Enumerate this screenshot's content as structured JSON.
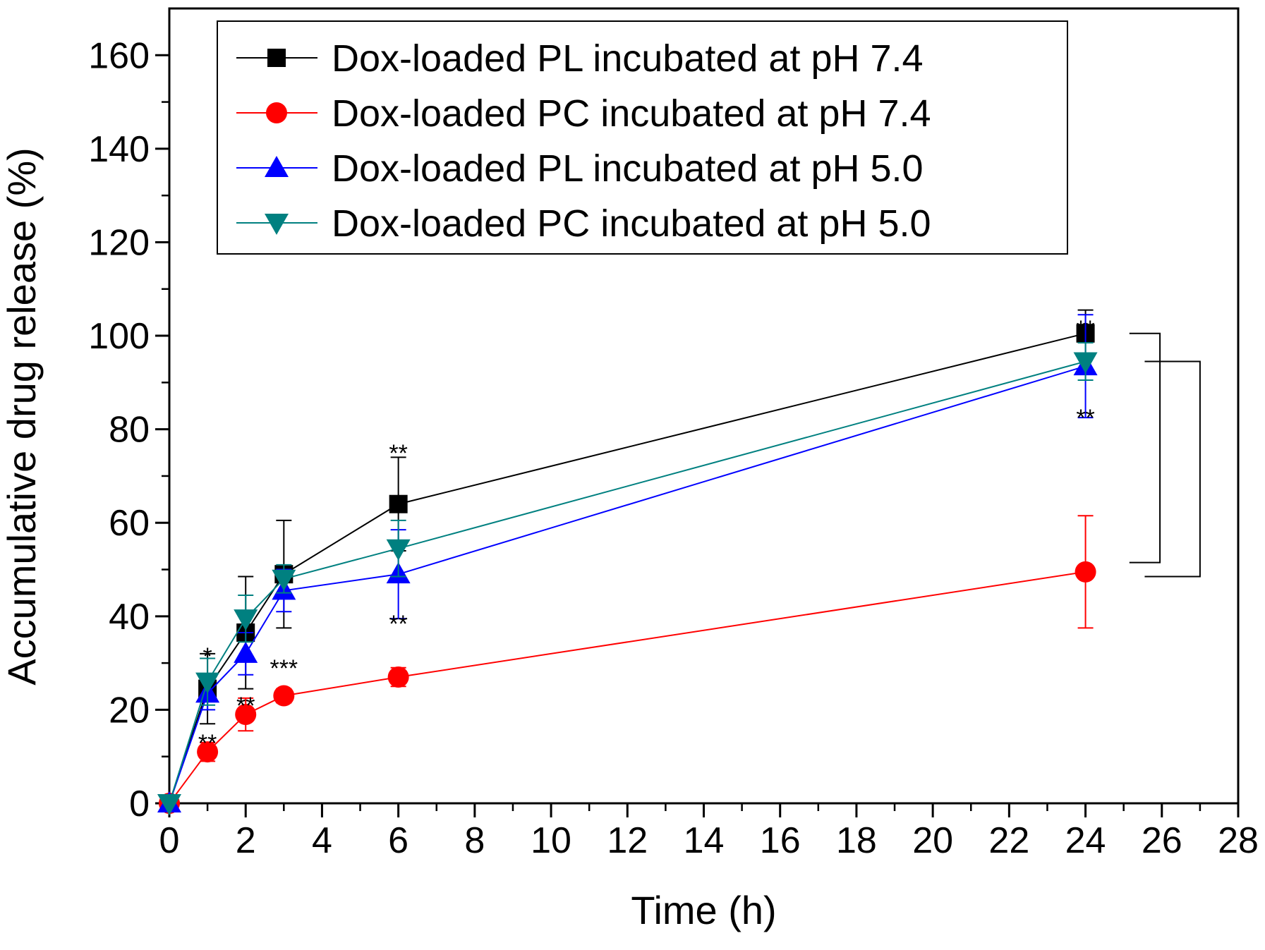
{
  "chart_data": {
    "type": "line",
    "xlabel": "Time (h)",
    "ylabel": "Accumulative drug release (%)",
    "xlim": [
      0,
      28
    ],
    "ylim": [
      0,
      170
    ],
    "xticks": [
      "0",
      "2",
      "4",
      "6",
      "8",
      "10",
      "12",
      "14",
      "16",
      "18",
      "20",
      "22",
      "24",
      "26",
      "28"
    ],
    "yticks": [
      "0",
      "20",
      "40",
      "60",
      "80",
      "100",
      "120",
      "140",
      "160"
    ],
    "grid": false,
    "legend": "top-center",
    "series": [
      {
        "name": "Dox-loaded PL incubated at pH 7.4",
        "color": "#000000",
        "marker": "square",
        "x": [
          0,
          1,
          2,
          3,
          6,
          24
        ],
        "y": [
          0,
          24.5,
          36.5,
          49,
          64,
          100.5
        ],
        "err": [
          0,
          7.5,
          12,
          11.5,
          10,
          5
        ]
      },
      {
        "name": "Dox-loaded PC incubated at pH 7.4",
        "color": "#ff0000",
        "marker": "circle",
        "x": [
          0,
          1,
          2,
          3,
          6,
          24
        ],
        "y": [
          0,
          11,
          19,
          23,
          27,
          49.5
        ],
        "err": [
          0,
          2,
          3.5,
          1.5,
          2,
          12
        ]
      },
      {
        "name": "Dox-loaded PL incubated at pH 5.0",
        "color": "#0000ff",
        "marker": "triangle-up",
        "x": [
          0,
          1,
          2,
          3,
          6,
          24
        ],
        "y": [
          0,
          23.5,
          32,
          45.5,
          49,
          93.5
        ],
        "err": [
          0,
          3.5,
          4.5,
          4.5,
          9.5,
          11
        ]
      },
      {
        "name": "Dox-loaded PC incubated at pH 5.0",
        "color": "#008080",
        "marker": "triangle-down",
        "x": [
          0,
          1,
          2,
          3,
          6,
          24
        ],
        "y": [
          0,
          26,
          39.5,
          48,
          54.5,
          94.5
        ],
        "err": [
          0,
          5,
          5,
          3,
          6,
          4
        ]
      }
    ],
    "annotations": [
      {
        "text": "*",
        "x": 1,
        "y": 33
      },
      {
        "text": "**",
        "x": 1,
        "y": 14.5
      },
      {
        "text": "**",
        "x": 2,
        "y": 22.5
      },
      {
        "text": "***",
        "x": 3,
        "y": 30.5
      },
      {
        "text": "**",
        "x": 6,
        "y": 76.5
      },
      {
        "text": "**",
        "x": 6,
        "y": 40
      },
      {
        "text": "**",
        "x": 24,
        "y": 103
      },
      {
        "text": "**",
        "x": 24,
        "y": 84
      }
    ]
  }
}
